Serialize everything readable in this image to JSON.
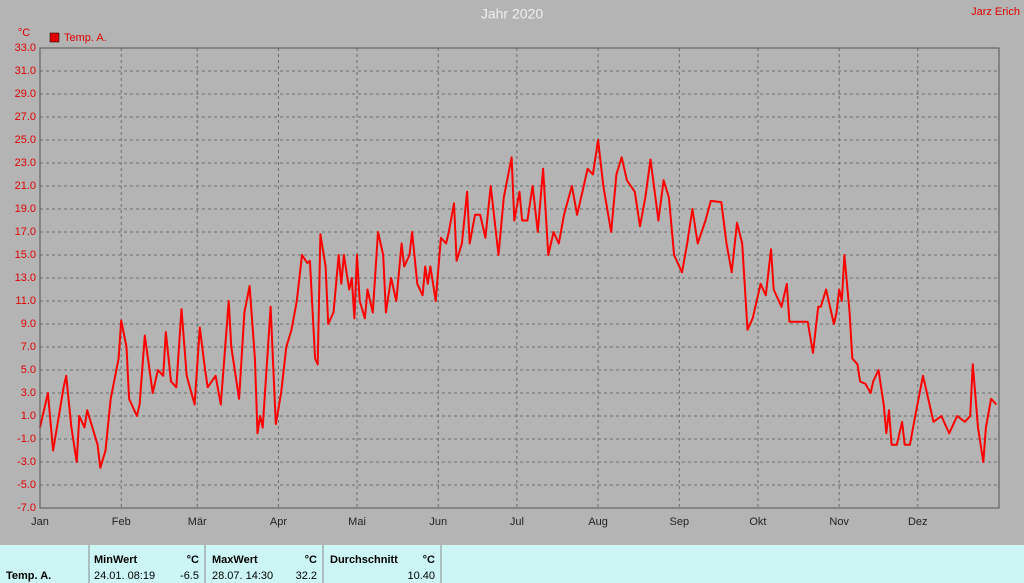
{
  "chart_data": {
    "type": "line",
    "title": "Jahr 2020",
    "y_unit": "°C",
    "author": "Jarz Erich",
    "series": [
      {
        "name": "Temp. A.",
        "color": "#ff0000",
        "x": [
          0,
          3,
          5,
          9,
          10,
          12,
          14,
          15,
          17,
          18,
          22,
          23,
          25,
          27,
          30,
          31,
          33,
          34,
          37,
          38,
          40,
          43,
          45,
          47,
          48,
          50,
          52,
          54,
          56,
          59,
          61,
          63,
          64,
          67,
          69,
          72,
          73,
          76,
          78,
          80,
          82,
          83,
          84,
          85,
          87,
          88,
          90,
          92,
          94,
          96,
          98,
          100,
          102,
          103,
          105,
          106,
          107,
          109,
          110,
          112,
          114,
          115,
          116,
          118,
          119,
          120,
          121,
          122,
          124,
          125,
          127,
          129,
          131,
          132,
          134,
          136,
          138,
          139,
          141,
          142,
          144,
          146,
          147,
          148,
          149,
          151,
          153,
          155,
          156,
          158,
          159,
          161,
          163,
          164,
          166,
          168,
          170,
          172,
          174,
          175,
          177,
          180,
          181,
          183,
          184,
          186,
          188,
          190,
          192,
          194,
          196,
          198,
          200,
          203,
          205,
          207,
          209,
          211,
          213,
          215,
          218,
          220,
          222,
          224,
          227,
          229,
          231,
          233,
          236,
          238,
          240,
          242,
          245,
          247,
          249,
          251,
          254,
          256,
          260,
          262,
          264,
          266,
          268,
          270,
          272,
          275,
          277,
          279,
          280,
          283,
          285,
          286,
          291,
          293,
          295,
          297,
          298,
          300,
          303,
          304,
          305,
          306,
          307,
          309,
          310,
          312,
          313,
          315,
          317,
          318,
          320,
          322,
          323,
          324,
          325,
          327,
          329,
          330,
          332,
          334,
          337,
          341,
          344,
          347,
          350,
          353,
          355,
          356,
          358,
          360,
          361,
          363,
          365
        ],
        "values": [
          0,
          3,
          -2,
          3.5,
          4.5,
          0,
          -3,
          1,
          0,
          1.5,
          -1.5,
          -3.5,
          -2,
          2.5,
          6,
          9.3,
          7,
          2.5,
          1,
          2,
          8,
          3,
          5,
          4.5,
          8.3,
          4,
          3.5,
          10.3,
          4.5,
          2,
          8.7,
          5,
          3.5,
          4.5,
          2,
          11,
          7,
          2.5,
          10,
          12.3,
          6,
          -0.5,
          1,
          0,
          7,
          10.5,
          0.3,
          3,
          7,
          8.5,
          11,
          15,
          14.3,
          14.5,
          6,
          5.5,
          16.8,
          14,
          9,
          10,
          15,
          12.5,
          15,
          12,
          13,
          9.5,
          15,
          11,
          9.5,
          12,
          10,
          17,
          15,
          10,
          13,
          11,
          16,
          14,
          15,
          17,
          12.5,
          11.5,
          14,
          12.5,
          14,
          11,
          16.5,
          16,
          17,
          19.5,
          14.5,
          16,
          20.5,
          16,
          18.5,
          18.5,
          16.5,
          21,
          17,
          15,
          20,
          23.5,
          18,
          20.5,
          18,
          18,
          21,
          17,
          22.5,
          15,
          17,
          16,
          18.5,
          21,
          18.5,
          20.5,
          22.5,
          22,
          25,
          21,
          17,
          22,
          23.5,
          21.5,
          20.5,
          17.5,
          20,
          23.3,
          18,
          21.5,
          20,
          15,
          13.5,
          16,
          19,
          16,
          18,
          19.7,
          19.6,
          16,
          13.5,
          17.8,
          16,
          8.5,
          9.5,
          12.5,
          11.5,
          15.5,
          12,
          10.5,
          12.5,
          9.2,
          9.2,
          9.2,
          6.5,
          10.5,
          10.5,
          12,
          9,
          10,
          12,
          11,
          15,
          10,
          6,
          5.5,
          4,
          3.8,
          3,
          4,
          5,
          2,
          -0.5,
          1.5,
          -1.5,
          -1.5,
          0.5,
          -1.5,
          -1.5,
          1,
          4.5,
          0.5,
          1,
          -0.5,
          1,
          0.5,
          1,
          5.5,
          0,
          -3,
          0,
          2.5,
          2
        ]
      }
    ],
    "xlim": [
      0,
      366
    ],
    "xticks": [
      {
        "value": 0,
        "label": "Jan"
      },
      {
        "value": 31,
        "label": "Feb"
      },
      {
        "value": 60,
        "label": "Mär"
      },
      {
        "value": 91,
        "label": "Apr"
      },
      {
        "value": 121,
        "label": "Mai"
      },
      {
        "value": 152,
        "label": "Jun"
      },
      {
        "value": 182,
        "label": "Jul"
      },
      {
        "value": 213,
        "label": "Aug"
      },
      {
        "value": 244,
        "label": "Sep"
      },
      {
        "value": 274,
        "label": "Okt"
      },
      {
        "value": 305,
        "label": "Nov"
      },
      {
        "value": 335,
        "label": "Dez"
      }
    ],
    "ylim": [
      -7,
      33
    ],
    "yticks": [
      {
        "value": -7,
        "label": "-7.0"
      },
      {
        "value": -5,
        "label": "-5.0"
      },
      {
        "value": -3,
        "label": "-3.0"
      },
      {
        "value": -1,
        "label": "-1.0"
      },
      {
        "value": 1,
        "label": "1.0"
      },
      {
        "value": 3,
        "label": "3.0"
      },
      {
        "value": 5,
        "label": "5.0"
      },
      {
        "value": 7,
        "label": "7.0"
      },
      {
        "value": 9,
        "label": "9.0"
      },
      {
        "value": 11,
        "label": "11.0"
      },
      {
        "value": 13,
        "label": "13.0"
      },
      {
        "value": 15,
        "label": "15.0"
      },
      {
        "value": 17,
        "label": "17.0"
      },
      {
        "value": 19,
        "label": "19.0"
      },
      {
        "value": 21,
        "label": "21.0"
      },
      {
        "value": 23,
        "label": "23.0"
      },
      {
        "value": 25,
        "label": "25.0"
      },
      {
        "value": 27,
        "label": "27.0"
      },
      {
        "value": 29,
        "label": "29.0"
      },
      {
        "value": 31,
        "label": "31.0"
      },
      {
        "value": 33,
        "label": "33.0"
      }
    ],
    "grid": true
  },
  "table": {
    "row_label": "Temp. A.",
    "min": {
      "header": "MinWert",
      "unit": "°C",
      "time": "24.01.  08:19",
      "value": "-6.5"
    },
    "max": {
      "header": "MaxWert",
      "unit": "°C",
      "time": "28.07.  14:30",
      "value": "32.2"
    },
    "avg": {
      "header": "Durchschnitt",
      "unit": "°C",
      "value": "10.40"
    }
  }
}
